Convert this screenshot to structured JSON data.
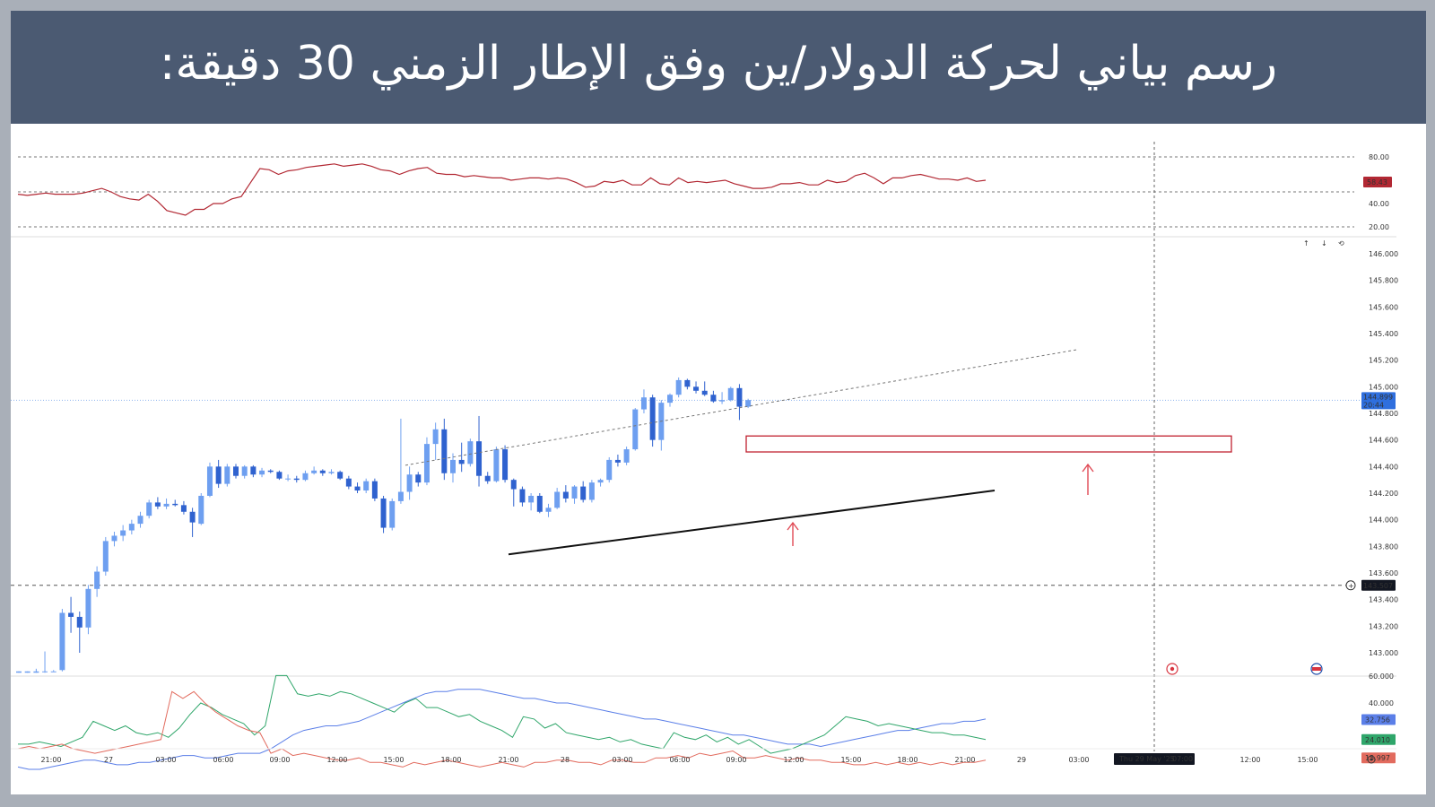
{
  "header": {
    "title": "رسم بياني لحركة الدولار/ين وفق الإطار الزمني 30 دقيقة:"
  },
  "colors": {
    "header_bg": "#4b5a72",
    "bull": "#6e9ff0",
    "bear": "#2f62cf",
    "rsi_line": "#b22833",
    "zone": "#c0202f",
    "arrow": "#e04a55",
    "adx": "#5b7fe8",
    "di_plus": "#2fa66a",
    "di_minus": "#e26b5e"
  },
  "chart_data": {
    "type": "candlestick",
    "title": "",
    "time_labels": [
      "21:00",
      "27",
      "03:00",
      "06:00",
      "09:00",
      "12:00",
      "15:00",
      "18:00",
      "21:00",
      "28",
      "03:00",
      "06:00",
      "09:00",
      "12:00",
      "15:00",
      "18:00",
      "21:00",
      "29",
      "03:00",
      "07:00",
      "12:00",
      "15:00"
    ],
    "crosshair_time": "Thu 29 May '25",
    "crosshair_time_right": "07:00",
    "price_ticks": [
      "146.000",
      "145.800",
      "145.600",
      "145.400",
      "145.200",
      "145.000",
      "144.800",
      "144.600",
      "144.400",
      "144.200",
      "144.000",
      "143.800",
      "143.600",
      "143.400",
      "143.200",
      "143.000"
    ],
    "ylim": [
      142.85,
      146.15
    ],
    "last_price": "144.899",
    "last_price_countdown": "20:44",
    "crosshair_price": "143.507",
    "candles": [
      {
        "o": 142.85,
        "h": 142.86,
        "l": 142.85,
        "c": 142.86
      },
      {
        "o": 142.85,
        "h": 142.86,
        "l": 142.85,
        "c": 142.86
      },
      {
        "o": 142.85,
        "h": 142.88,
        "l": 142.85,
        "c": 142.86
      },
      {
        "o": 142.86,
        "h": 143.01,
        "l": 142.85,
        "c": 142.86
      },
      {
        "o": 142.86,
        "h": 142.87,
        "l": 142.86,
        "c": 142.86
      },
      {
        "o": 142.87,
        "h": 143.33,
        "l": 142.86,
        "c": 143.3
      },
      {
        "o": 143.3,
        "h": 143.42,
        "l": 143.15,
        "c": 143.27
      },
      {
        "o": 143.27,
        "h": 143.31,
        "l": 143.0,
        "c": 143.19
      },
      {
        "o": 143.19,
        "h": 143.51,
        "l": 143.14,
        "c": 143.48
      },
      {
        "o": 143.48,
        "h": 143.65,
        "l": 143.42,
        "c": 143.61
      },
      {
        "o": 143.61,
        "h": 143.87,
        "l": 143.58,
        "c": 143.84
      },
      {
        "o": 143.84,
        "h": 143.91,
        "l": 143.8,
        "c": 143.88
      },
      {
        "o": 143.88,
        "h": 143.96,
        "l": 143.84,
        "c": 143.92
      },
      {
        "o": 143.92,
        "h": 144.0,
        "l": 143.89,
        "c": 143.97
      },
      {
        "o": 143.97,
        "h": 144.06,
        "l": 143.94,
        "c": 144.03
      },
      {
        "o": 144.03,
        "h": 144.15,
        "l": 144.01,
        "c": 144.13
      },
      {
        "o": 144.13,
        "h": 144.17,
        "l": 144.08,
        "c": 144.1
      },
      {
        "o": 144.1,
        "h": 144.16,
        "l": 144.08,
        "c": 144.12
      },
      {
        "o": 144.12,
        "h": 144.15,
        "l": 144.1,
        "c": 144.11
      },
      {
        "o": 144.11,
        "h": 144.14,
        "l": 144.04,
        "c": 144.06
      },
      {
        "o": 144.06,
        "h": 144.09,
        "l": 143.87,
        "c": 143.98
      },
      {
        "o": 143.97,
        "h": 144.2,
        "l": 143.96,
        "c": 144.18
      },
      {
        "o": 144.18,
        "h": 144.43,
        "l": 144.17,
        "c": 144.4
      },
      {
        "o": 144.4,
        "h": 144.45,
        "l": 144.24,
        "c": 144.27
      },
      {
        "o": 144.27,
        "h": 144.42,
        "l": 144.25,
        "c": 144.4
      },
      {
        "o": 144.4,
        "h": 144.42,
        "l": 144.31,
        "c": 144.33
      },
      {
        "o": 144.33,
        "h": 144.41,
        "l": 144.31,
        "c": 144.4
      },
      {
        "o": 144.4,
        "h": 144.41,
        "l": 144.32,
        "c": 144.34
      },
      {
        "o": 144.34,
        "h": 144.39,
        "l": 144.32,
        "c": 144.37
      },
      {
        "o": 144.37,
        "h": 144.38,
        "l": 144.35,
        "c": 144.36
      },
      {
        "o": 144.36,
        "h": 144.37,
        "l": 144.3,
        "c": 144.31
      },
      {
        "o": 144.31,
        "h": 144.34,
        "l": 144.29,
        "c": 144.31
      },
      {
        "o": 144.31,
        "h": 144.33,
        "l": 144.28,
        "c": 144.3
      },
      {
        "o": 144.3,
        "h": 144.37,
        "l": 144.29,
        "c": 144.35
      },
      {
        "o": 144.35,
        "h": 144.4,
        "l": 144.34,
        "c": 144.37
      },
      {
        "o": 144.37,
        "h": 144.38,
        "l": 144.33,
        "c": 144.35
      },
      {
        "o": 144.35,
        "h": 144.38,
        "l": 144.34,
        "c": 144.36
      },
      {
        "o": 144.36,
        "h": 144.37,
        "l": 144.3,
        "c": 144.31
      },
      {
        "o": 144.31,
        "h": 144.33,
        "l": 144.23,
        "c": 144.25
      },
      {
        "o": 144.25,
        "h": 144.28,
        "l": 144.2,
        "c": 144.22
      },
      {
        "o": 144.22,
        "h": 144.31,
        "l": 144.2,
        "c": 144.29
      },
      {
        "o": 144.29,
        "h": 144.31,
        "l": 144.14,
        "c": 144.16
      },
      {
        "o": 144.16,
        "h": 144.18,
        "l": 143.9,
        "c": 143.94
      },
      {
        "o": 143.94,
        "h": 144.16,
        "l": 143.92,
        "c": 144.14
      },
      {
        "o": 144.14,
        "h": 144.76,
        "l": 144.12,
        "c": 144.21
      },
      {
        "o": 144.21,
        "h": 144.4,
        "l": 144.15,
        "c": 144.34
      },
      {
        "o": 144.34,
        "h": 144.36,
        "l": 144.25,
        "c": 144.28
      },
      {
        "o": 144.28,
        "h": 144.62,
        "l": 144.26,
        "c": 144.57
      },
      {
        "o": 144.57,
        "h": 144.73,
        "l": 144.45,
        "c": 144.68
      },
      {
        "o": 144.68,
        "h": 144.76,
        "l": 144.3,
        "c": 144.35
      },
      {
        "o": 144.35,
        "h": 144.5,
        "l": 144.28,
        "c": 144.45
      },
      {
        "o": 144.45,
        "h": 144.58,
        "l": 144.36,
        "c": 144.42
      },
      {
        "o": 144.42,
        "h": 144.61,
        "l": 144.4,
        "c": 144.59
      },
      {
        "o": 144.59,
        "h": 144.78,
        "l": 144.25,
        "c": 144.33
      },
      {
        "o": 144.33,
        "h": 144.36,
        "l": 144.27,
        "c": 144.29
      },
      {
        "o": 144.29,
        "h": 144.55,
        "l": 144.28,
        "c": 144.53
      },
      {
        "o": 144.53,
        "h": 144.56,
        "l": 144.28,
        "c": 144.3
      },
      {
        "o": 144.3,
        "h": 144.31,
        "l": 144.1,
        "c": 144.23
      },
      {
        "o": 144.23,
        "h": 144.25,
        "l": 144.1,
        "c": 144.13
      },
      {
        "o": 144.13,
        "h": 144.2,
        "l": 144.07,
        "c": 144.18
      },
      {
        "o": 144.18,
        "h": 144.2,
        "l": 144.05,
        "c": 144.06
      },
      {
        "o": 144.06,
        "h": 144.12,
        "l": 144.02,
        "c": 144.09
      },
      {
        "o": 144.09,
        "h": 144.24,
        "l": 144.08,
        "c": 144.21
      },
      {
        "o": 144.21,
        "h": 144.26,
        "l": 144.13,
        "c": 144.16
      },
      {
        "o": 144.16,
        "h": 144.26,
        "l": 144.12,
        "c": 144.25
      },
      {
        "o": 144.25,
        "h": 144.29,
        "l": 144.13,
        "c": 144.15
      },
      {
        "o": 144.15,
        "h": 144.3,
        "l": 144.13,
        "c": 144.28
      },
      {
        "o": 144.28,
        "h": 144.31,
        "l": 144.25,
        "c": 144.3
      },
      {
        "o": 144.3,
        "h": 144.47,
        "l": 144.28,
        "c": 144.45
      },
      {
        "o": 144.45,
        "h": 144.49,
        "l": 144.4,
        "c": 144.43
      },
      {
        "o": 144.43,
        "h": 144.55,
        "l": 144.41,
        "c": 144.53
      },
      {
        "o": 144.53,
        "h": 144.84,
        "l": 144.52,
        "c": 144.83
      },
      {
        "o": 144.83,
        "h": 144.98,
        "l": 144.8,
        "c": 144.92
      },
      {
        "o": 144.92,
        "h": 144.94,
        "l": 144.55,
        "c": 144.6
      },
      {
        "o": 144.6,
        "h": 144.9,
        "l": 144.52,
        "c": 144.88
      },
      {
        "o": 144.88,
        "h": 144.95,
        "l": 144.85,
        "c": 144.94
      },
      {
        "o": 144.94,
        "h": 145.07,
        "l": 144.92,
        "c": 145.05
      },
      {
        "o": 145.05,
        "h": 145.06,
        "l": 144.98,
        "c": 145.0
      },
      {
        "o": 145.0,
        "h": 145.04,
        "l": 144.95,
        "c": 144.97
      },
      {
        "o": 144.97,
        "h": 145.04,
        "l": 144.93,
        "c": 144.94
      },
      {
        "o": 144.94,
        "h": 144.97,
        "l": 144.88,
        "c": 144.89
      },
      {
        "o": 144.89,
        "h": 144.96,
        "l": 144.87,
        "c": 144.9
      },
      {
        "o": 144.9,
        "h": 145.0,
        "l": 144.89,
        "c": 144.99
      },
      {
        "o": 144.99,
        "h": 145.02,
        "l": 144.75,
        "c": 144.85
      },
      {
        "o": 144.85,
        "h": 144.91,
        "l": 144.84,
        "c": 144.9
      }
    ],
    "resistance_zone": {
      "top": 144.63,
      "bottom": 144.51
    },
    "rsi": {
      "ticks": [
        "80.00",
        "40.00",
        "20.00"
      ],
      "dashed_levels": [
        80,
        50,
        20
      ],
      "current": "58.43",
      "values": [
        48,
        47,
        48,
        49,
        48,
        48,
        48,
        49,
        51,
        53,
        50,
        46,
        44,
        43,
        48,
        42,
        34,
        32,
        30,
        35,
        35,
        40,
        40,
        44,
        46,
        58,
        70,
        69,
        65,
        68,
        69,
        71,
        72,
        73,
        74,
        72,
        73,
        74,
        72,
        69,
        68,
        65,
        68,
        70,
        71,
        66,
        65,
        65,
        63,
        64,
        63,
        62,
        62,
        60,
        61,
        62,
        62,
        61,
        62,
        61,
        58,
        54,
        55,
        59,
        58,
        60,
        56,
        56,
        62,
        57,
        56,
        62,
        58,
        59,
        58,
        59,
        60,
        57,
        55,
        53,
        53,
        54,
        57,
        57,
        58,
        56,
        56,
        60,
        58,
        59,
        64,
        66,
        62,
        57,
        62,
        62,
        64,
        65,
        63,
        61,
        61,
        60,
        62,
        59,
        60
      ]
    },
    "dmi": {
      "current_adx": "32.756",
      "current_plus": "24.010",
      "current_minus": "15.997",
      "adx": [
        12,
        11,
        11,
        12,
        13,
        14,
        15,
        15,
        14,
        13,
        13,
        14,
        14,
        15,
        16,
        17,
        17,
        16,
        16,
        17,
        18,
        18,
        18,
        20,
        23,
        26,
        28,
        29,
        30,
        30,
        31,
        32,
        34,
        36,
        38,
        40,
        42,
        44,
        45,
        45,
        46,
        46,
        46,
        45,
        44,
        43,
        42,
        42,
        41,
        40,
        40,
        39,
        38,
        37,
        36,
        35,
        34,
        33,
        33,
        32,
        31,
        30,
        29,
        28,
        27,
        26,
        26,
        25,
        24,
        23,
        22,
        22,
        22,
        21,
        22,
        23,
        24,
        25,
        26,
        27,
        28,
        28,
        29,
        30,
        31,
        31,
        32,
        32,
        33
      ],
      "di_plus": [
        22,
        22,
        23,
        22,
        21,
        23,
        25,
        32,
        30,
        28,
        30,
        27,
        26,
        27,
        25,
        29,
        35,
        40,
        38,
        35,
        33,
        31,
        26,
        30,
        52,
        52,
        44,
        43,
        44,
        43,
        45,
        44,
        42,
        40,
        38,
        36,
        40,
        42,
        38,
        38,
        36,
        34,
        35,
        32,
        30,
        28,
        25,
        34,
        33,
        29,
        31,
        27,
        26,
        25,
        24,
        25,
        23,
        24,
        22,
        21,
        20,
        27,
        25,
        24,
        26,
        23,
        25,
        22,
        24,
        21,
        18,
        19,
        20,
        22,
        24,
        26,
        30,
        34,
        33,
        32,
        30,
        31,
        30,
        29,
        28,
        27,
        27,
        26,
        26,
        25,
        24
      ],
      "di_minus": [
        20,
        21,
        20,
        21,
        22,
        20,
        19,
        18,
        19,
        20,
        21,
        22,
        23,
        24,
        45,
        42,
        45,
        40,
        36,
        33,
        30,
        28,
        27,
        18,
        20,
        17,
        18,
        17,
        16,
        15,
        15,
        16,
        14,
        14,
        13,
        12,
        14,
        13,
        14,
        15,
        14,
        13,
        12,
        13,
        14,
        13,
        12,
        14,
        14,
        15,
        15,
        14,
        14,
        13,
        15,
        15,
        14,
        14,
        16,
        16,
        17,
        16,
        18,
        17,
        18,
        19,
        16,
        16,
        17,
        16,
        15,
        16,
        15,
        15,
        14,
        14,
        13,
        13,
        14,
        13,
        14,
        13,
        14,
        13,
        14,
        13,
        14,
        14,
        15
      ]
    }
  }
}
